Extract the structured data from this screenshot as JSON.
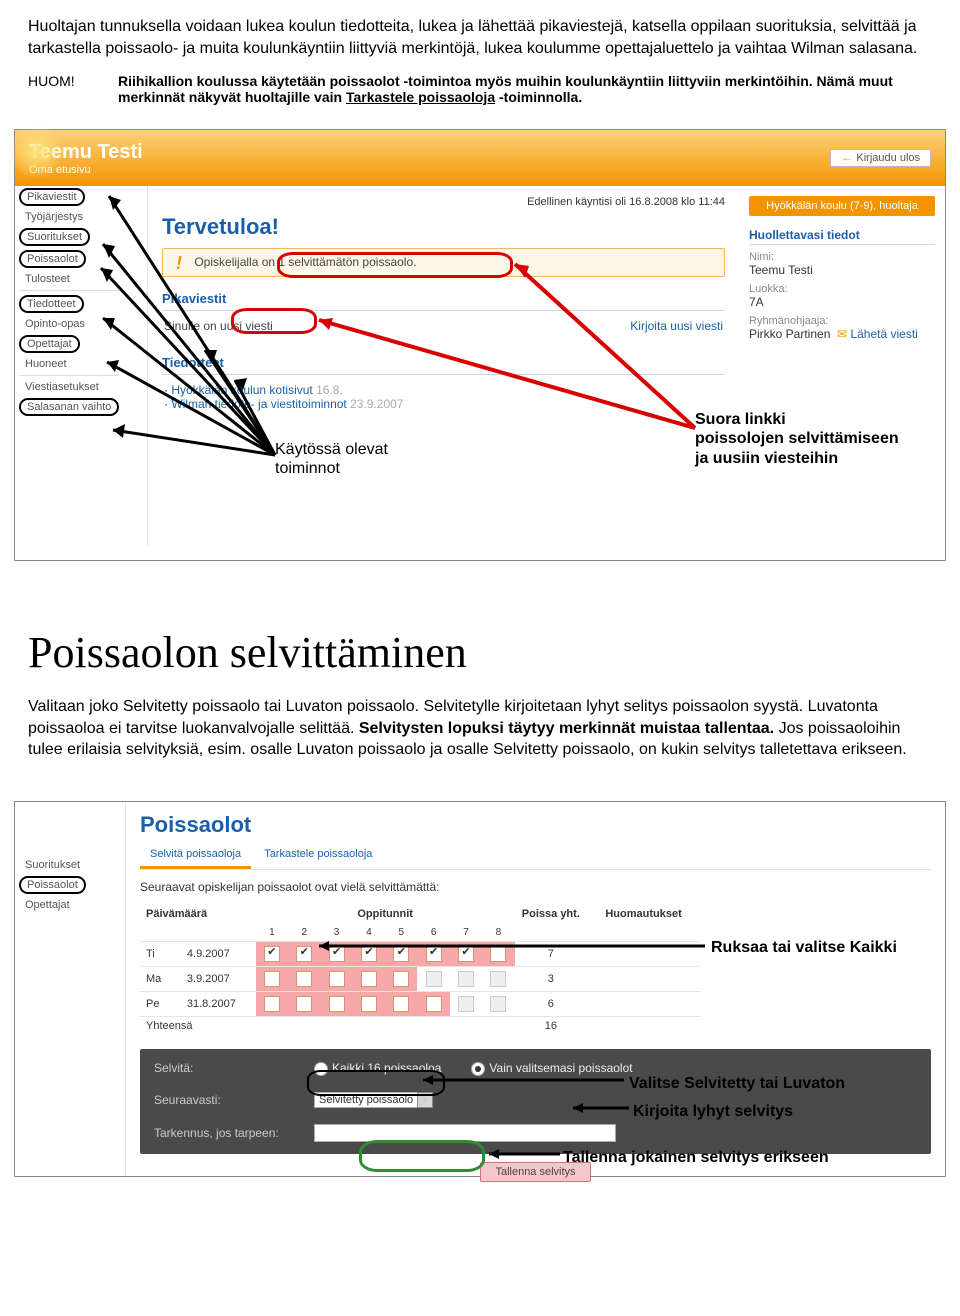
{
  "para1": "Huoltajan tunnuksella voidaan lukea koulun tiedotteita, lukea ja lähettää pikaviestejä, katsella oppilaan suorituksia, selvittää ja tarkastella poissaolo- ja muita koulunkäyntiin liittyviä merkintöjä, lukea koulumme opettajaluettelo ja vaihtaa Wilman salasana.",
  "huom_label": "HUOM!",
  "huom_text_a": "Riihikallion koulussa käytetään poissaolot -toimintoa myös muihin koulunkäyntiin liittyviin merkintöihin. Nämä muut merkinnät näkyvät huoltajille vain ",
  "huom_underline": "Tarkastele poissaoloja",
  "huom_text_b": " -toiminnolla.",
  "s1": {
    "orange_bg_from": "#ffd27a",
    "orange_bg_to": "#f29400",
    "user": "Teemu Testi",
    "subtitle": "Oma etusivu",
    "logout": "Kirjaudu ulos",
    "nav": [
      "Pikaviestit",
      "Työjärjestys",
      "Suoritukset",
      "Poissaolot",
      "Tulosteet",
      "Tiedotteet",
      "Opinto-opas",
      "Opettajat",
      "Huoneet",
      "Viestiasetukset",
      "Salasanan vaihto"
    ],
    "nav_circled": [
      true,
      false,
      true,
      true,
      false,
      true,
      false,
      true,
      false,
      false,
      true
    ],
    "lastvisit": "Edellinen käyntisi oli 16.8.2008 klo 11:44",
    "tervetuloa": "Tervetuloa!",
    "alert_a": "Opiskelijalla ",
    "alert_b": "on 1 selvittämätön poissaolo.",
    "pika_title": "Pikaviestit",
    "pika_a": "Sinulle on ",
    "pika_b": "uusi viesti",
    "pika_link": "Kirjoita uusi viesti",
    "tied_title": "Tiedotteet",
    "tied_1": "Hyökkälän koulun kotisivut",
    "tied_1d": "16.8.",
    "tied_2": "Wilman tiedote- ja viestitoiminnot",
    "tied_2d": "23.9.2007",
    "school": "Hyökkälän koulu (7-9), huoltaja",
    "school_bg": "#f29400",
    "side_title": "Huollettavasi tiedot",
    "side_name_lbl": "Nimi:",
    "side_name": "Teemu Testi",
    "side_class_lbl": "Luokka:",
    "side_class": "7A",
    "side_ro_lbl": "Ryhmänohjaaja:",
    "side_ro": "Pirkko Partinen",
    "side_mail": "Lähetä viesti",
    "annot1": "Käytössä olevat\ntoiminnot",
    "annot2": "Suora linkki\npoissolojen selvittämiseen\nja uusiin viesteihin"
  },
  "h1": "Poissaolon selvittäminen",
  "para2_a": "Valitaan joko Selvitetty poissaolo tai Luvaton poissaolo. Selvitetylle kirjoitetaan lyhyt selitys poissaolon syystä. Luvatonta poissaoloa ei tarvitse luokanvalvojalle selittää. ",
  "para2_b": "Selvitysten lopuksi täytyy merkinnät muistaa tallentaa.",
  "para2_c": " Jos poissaoloihin tulee erilaisia selvityksiä, esim. osalle Luvaton poissaolo ja osalle Selvitetty poissaolo, on kukin selvitys talletettava erikseen.",
  "s2": {
    "nav": [
      "Suoritukset",
      "Poissaolot",
      "Opettajat"
    ],
    "title": "Poissaolot",
    "tab1": "Selvitä poissaoloja",
    "tab2": "Tarkastele poissaoloja",
    "intro": "Seuraavat opiskelijan poissaolot ovat vielä selvittämättä:",
    "col_date": "Päivämäärä",
    "col_lessons": "Oppitunnit",
    "col_yht": "Poissa yht.",
    "col_huom": "Huomautukset",
    "lesson_nums": [
      "1",
      "2",
      "3",
      "4",
      "5",
      "6",
      "7",
      "8"
    ],
    "rows": [
      {
        "day": "Ti",
        "date": "4.9.2007",
        "cells": [
          2,
          2,
          2,
          2,
          2,
          2,
          2,
          1
        ],
        "yht": "7"
      },
      {
        "day": "Ma",
        "date": "3.9.2007",
        "cells": [
          1,
          1,
          1,
          1,
          1,
          0,
          0,
          0
        ],
        "yht": "3"
      },
      {
        "day": "Pe",
        "date": "31.8.2007",
        "cells": [
          1,
          1,
          1,
          1,
          1,
          1,
          0,
          0
        ],
        "yht": "6"
      }
    ],
    "yht_lbl": "Yhteensä",
    "yht_val": "16",
    "f1": "Selvitä:",
    "f1a": "Kaikki 16 poissaoloa",
    "f1b": "Vain valitsemasi poissaolot",
    "f2": "Seuraavasti:",
    "f2v": "Selvitetty poissaolo",
    "f3": "Tarkennus, jos tarpeen:",
    "btn": "Tallenna selvitys",
    "annotA": "Ruksaa tai valitse Kaikki",
    "annotB": "Valitse Selvitetty tai Luvaton",
    "annotC": "Kirjoita lyhyt selvitys",
    "annotD": "Tallenna jokainen selvitys erikseen"
  }
}
